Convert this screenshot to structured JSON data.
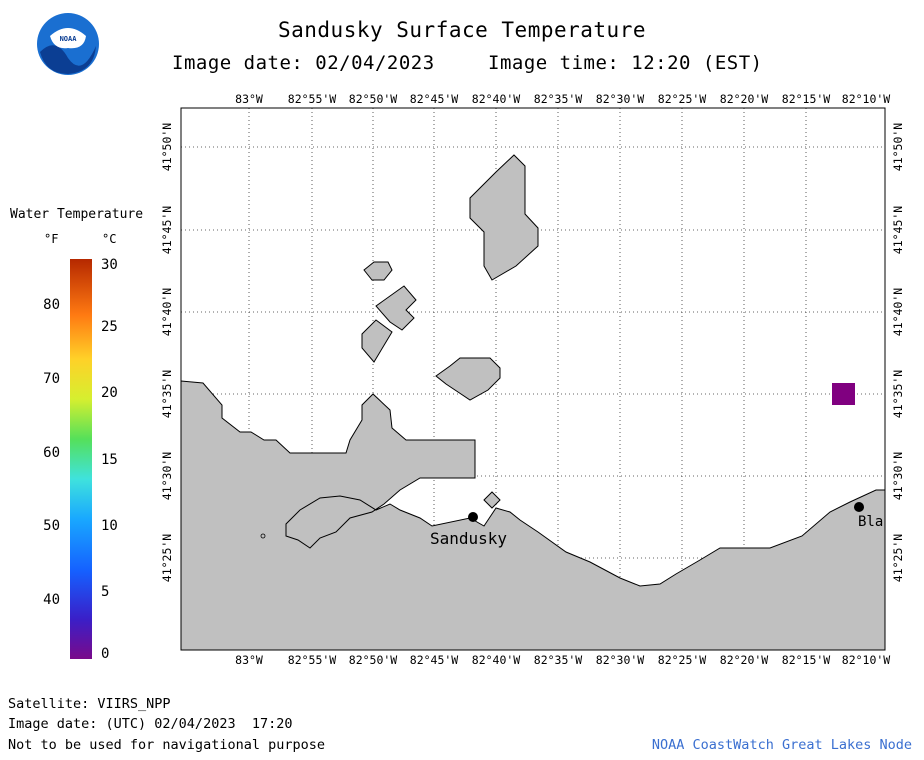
{
  "header": {
    "title": "Sandusky Surface Temperature",
    "image_date": "Image date: 02/04/2023",
    "image_time": "Image time: 12:20 (EST)"
  },
  "logo": {
    "text": "NOAA"
  },
  "map": {
    "longitude_labels": [
      "83°W",
      "82°55'W",
      "82°50'W",
      "82°45'W",
      "82°40'W",
      "82°35'W",
      "82°30'W",
      "82°25'W",
      "82°20'W",
      "82°15'W",
      "82°10'W"
    ],
    "latitude_labels": [
      "41°50'N",
      "41°45'N",
      "41°40'N",
      "41°35'N",
      "41°30'N",
      "41°25'N"
    ],
    "places": [
      {
        "name": "Sandusky",
        "lon": -82.708,
        "lat": 41.449
      },
      {
        "name": "Bla",
        "lon": -82.174,
        "lat": 41.466
      }
    ],
    "grid": true,
    "land_color": "#c0c0c0",
    "marker_color": "#800080"
  },
  "legend": {
    "title": "Water Temperature",
    "unit_f": "°F",
    "unit_c": "°C",
    "fahrenheit_ticks": [
      "80",
      "70",
      "60",
      "50",
      "40"
    ],
    "celsius_ticks": [
      "30",
      "25",
      "20",
      "15",
      "10",
      "5",
      "0"
    ]
  },
  "footer": {
    "satellite": "Satellite: VIIRS_NPP",
    "utc_date": "Image date: (UTC) 02/04/2023  17:20",
    "disclaimer": "Not to be used for navigational purpose",
    "credit": "NOAA CoastWatch Great Lakes Node"
  }
}
